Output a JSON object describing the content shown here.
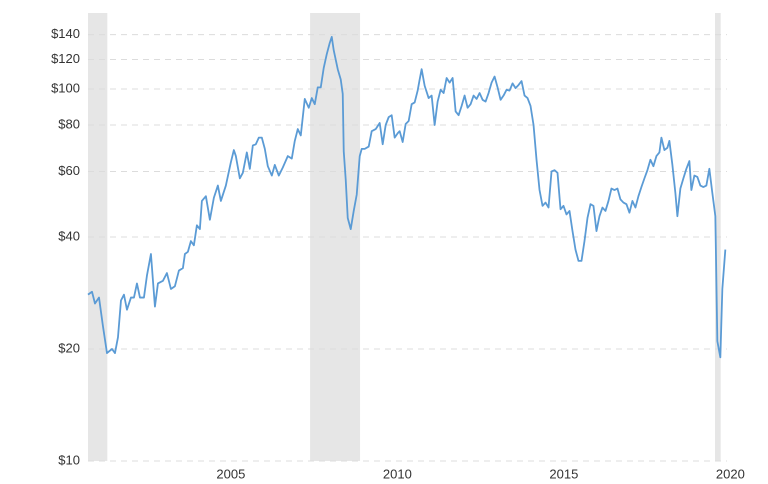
{
  "chart_data": {
    "type": "line",
    "log_scale": true,
    "grid": true,
    "ylim": [
      10,
      160
    ],
    "yticks": [
      {
        "value": 10,
        "label": "$10"
      },
      {
        "value": 20,
        "label": "$20"
      },
      {
        "value": 40,
        "label": "$40"
      },
      {
        "value": 60,
        "label": "$60"
      },
      {
        "value": 80,
        "label": "$80"
      },
      {
        "value": 100,
        "label": "$100"
      },
      {
        "value": 120,
        "label": "$120"
      },
      {
        "value": 140,
        "label": "$140"
      }
    ],
    "xlim": [
      2001.25,
      2020.44
    ],
    "xticks": [
      2005,
      2010,
      2015,
      2020
    ],
    "shaded_periods": [
      [
        2001.17,
        2001.83
      ],
      [
        2007.92,
        2009.42
      ],
      [
        2020.08,
        2020.25
      ]
    ],
    "shade_color": "#e6e6e6",
    "x": [
      2001.25,
      2001.37,
      2001.46,
      2001.58,
      2001.7,
      2001.82,
      2001.97,
      2002.06,
      2002.15,
      2002.24,
      2002.33,
      2002.42,
      2002.54,
      2002.63,
      2002.72,
      2002.81,
      2002.93,
      2003.02,
      2003.14,
      2003.26,
      2003.35,
      2003.5,
      2003.62,
      2003.74,
      2003.86,
      2003.98,
      2004.1,
      2004.16,
      2004.25,
      2004.34,
      2004.43,
      2004.52,
      2004.61,
      2004.67,
      2004.79,
      2004.91,
      2005.03,
      2005.15,
      2005.24,
      2005.39,
      2005.54,
      2005.63,
      2005.69,
      2005.81,
      2005.9,
      2006.02,
      2006.11,
      2006.2,
      2006.29,
      2006.38,
      2006.47,
      2006.56,
      2006.65,
      2006.77,
      2006.86,
      2006.98,
      2007.1,
      2007.25,
      2007.37,
      2007.46,
      2007.55,
      2007.64,
      2007.76,
      2007.88,
      2007.97,
      2008.06,
      2008.15,
      2008.24,
      2008.33,
      2008.42,
      2008.51,
      2008.57,
      2008.63,
      2008.75,
      2008.84,
      2008.9,
      2008.93,
      2008.99,
      2009.05,
      2009.14,
      2009.23,
      2009.32,
      2009.41,
      2009.47,
      2009.56,
      2009.68,
      2009.77,
      2009.89,
      2010.01,
      2010.1,
      2010.19,
      2010.28,
      2010.37,
      2010.46,
      2010.55,
      2010.61,
      2010.7,
      2010.79,
      2010.88,
      2010.97,
      2011.06,
      2011.15,
      2011.21,
      2011.27,
      2011.36,
      2011.48,
      2011.57,
      2011.66,
      2011.75,
      2011.84,
      2011.93,
      2012.02,
      2012.11,
      2012.2,
      2012.29,
      2012.38,
      2012.47,
      2012.56,
      2012.65,
      2012.74,
      2012.83,
      2012.92,
      2013.01,
      2013.1,
      2013.19,
      2013.28,
      2013.37,
      2013.46,
      2013.55,
      2013.64,
      2013.73,
      2013.82,
      2013.91,
      2014.0,
      2014.09,
      2014.18,
      2014.27,
      2014.36,
      2014.45,
      2014.54,
      2014.63,
      2014.72,
      2014.81,
      2014.9,
      2014.99,
      2015.08,
      2015.17,
      2015.26,
      2015.35,
      2015.44,
      2015.53,
      2015.62,
      2015.71,
      2015.8,
      2015.89,
      2015.98,
      2016.07,
      2016.16,
      2016.25,
      2016.34,
      2016.43,
      2016.52,
      2016.61,
      2016.7,
      2016.79,
      2016.88,
      2016.97,
      2017.06,
      2017.15,
      2017.24,
      2017.33,
      2017.42,
      2017.51,
      2017.6,
      2017.69,
      2017.78,
      2017.87,
      2017.96,
      2018.05,
      2018.14,
      2018.23,
      2018.32,
      2018.41,
      2018.47,
      2018.56,
      2018.65,
      2018.71,
      2018.8,
      2018.89,
      2018.95,
      2019.04,
      2019.13,
      2019.22,
      2019.31,
      2019.37,
      2019.46,
      2019.55,
      2019.64,
      2019.73,
      2019.82,
      2019.91,
      2020.0,
      2020.09,
      2020.15,
      2020.24,
      2020.3,
      2020.39
    ],
    "series": [
      {
        "color": "#5b9bd5",
        "values": [
          28,
          28.5,
          26.5,
          27.5,
          23,
          19.5,
          20,
          19.5,
          21.5,
          27,
          28,
          25.5,
          27.5,
          27.5,
          30,
          27.5,
          27.5,
          31.5,
          36,
          26,
          30,
          30.5,
          32,
          29,
          29.5,
          32.5,
          33,
          36,
          36.5,
          39,
          38,
          43,
          42,
          50,
          51.5,
          44.5,
          51,
          55,
          50,
          55,
          63.5,
          68.5,
          66,
          57.5,
          59.5,
          67.5,
          61,
          70.5,
          71,
          74,
          74,
          69,
          62,
          58.5,
          62.5,
          58.5,
          61.5,
          66,
          65,
          72.5,
          78,
          75,
          94,
          89,
          94.5,
          91,
          101,
          101,
          114,
          124,
          133,
          138,
          127,
          113,
          106,
          97,
          68,
          57,
          45,
          42,
          47,
          52,
          66,
          69,
          69,
          70,
          77,
          78,
          81,
          71,
          80,
          84,
          85,
          74,
          76,
          77,
          72,
          80.5,
          82,
          91,
          92,
          99,
          106,
          113,
          102,
          94.5,
          96,
          80,
          92.5,
          99.5,
          97.5,
          107,
          104,
          107,
          87,
          85,
          90,
          96,
          89,
          91,
          96,
          94,
          97.5,
          93.5,
          92.5,
          97.5,
          104,
          108,
          101,
          93.5,
          96,
          99.5,
          99,
          103.5,
          100.5,
          102.5,
          105,
          96,
          94.5,
          90,
          80,
          64.5,
          53.5,
          48.5,
          49.5,
          48,
          60,
          60.5,
          59.5,
          47.5,
          48.5,
          46,
          47,
          41.5,
          37,
          34.5,
          34.5,
          39,
          45,
          49,
          48.5,
          41.5,
          45.5,
          48,
          47,
          50,
          54,
          53.5,
          54,
          50.5,
          49.5,
          49,
          46.5,
          50,
          48,
          51.5,
          54.5,
          57.5,
          60.5,
          64.5,
          62,
          66,
          67.5,
          74,
          68.5,
          69.5,
          72.5,
          62.5,
          52.5,
          45.5,
          54,
          57.5,
          61,
          64,
          53.5,
          58.5,
          58,
          55,
          54.5,
          55,
          61,
          52.5,
          45.5,
          21,
          19,
          29,
          37
        ]
      }
    ]
  }
}
